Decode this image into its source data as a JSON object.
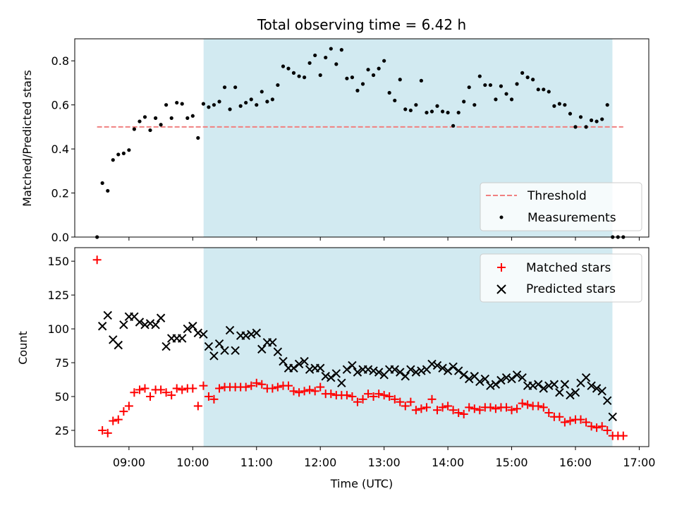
{
  "chart_data": [
    {
      "type": "scatter",
      "title": "Total observing time = 6.42 h",
      "ylabel": "Matched/Predicted stars",
      "xlabel": "",
      "xlim": [
        8.15,
        17.15
      ],
      "ylim": [
        0,
        0.9
      ],
      "yticks": [
        "0.0",
        "0.2",
        "0.4",
        "0.6",
        "0.8"
      ],
      "shaded_interval": {
        "x0": 10.17,
        "x1": 16.58,
        "color": "#add8e6"
      },
      "threshold": {
        "name": "Threshold",
        "y": 0.5,
        "x0": 8.5,
        "x1": 16.75,
        "color": "#f08080"
      },
      "series": [
        {
          "name": "Measurements",
          "color": "#000000",
          "x": [
            8.5,
            8.583,
            8.667,
            8.75,
            8.833,
            8.917,
            9.0,
            9.083,
            9.167,
            9.25,
            9.333,
            9.417,
            9.5,
            9.583,
            9.667,
            9.75,
            9.833,
            9.917,
            10.0,
            10.083,
            10.167,
            10.25,
            10.333,
            10.417,
            10.5,
            10.583,
            10.667,
            10.75,
            10.833,
            10.917,
            11.0,
            11.083,
            11.167,
            11.25,
            11.333,
            11.417,
            11.5,
            11.583,
            11.667,
            11.75,
            11.833,
            11.917,
            12.0,
            12.083,
            12.167,
            12.25,
            12.333,
            12.417,
            12.5,
            12.583,
            12.667,
            12.75,
            12.833,
            12.917,
            13.0,
            13.083,
            13.167,
            13.25,
            13.333,
            13.417,
            13.5,
            13.583,
            13.667,
            13.75,
            13.833,
            13.917,
            14.0,
            14.083,
            14.167,
            14.25,
            14.333,
            14.417,
            14.5,
            14.583,
            14.667,
            14.75,
            14.833,
            14.917,
            15.0,
            15.083,
            15.167,
            15.25,
            15.333,
            15.417,
            15.5,
            15.583,
            15.667,
            15.75,
            15.833,
            15.917,
            16.0,
            16.083,
            16.167,
            16.25,
            16.333,
            16.417,
            16.5,
            16.583,
            16.667,
            16.75
          ],
          "y": [
            0.0,
            0.245,
            0.21,
            0.35,
            0.375,
            0.38,
            0.395,
            0.49,
            0.525,
            0.545,
            0.485,
            0.54,
            0.51,
            0.6,
            0.54,
            0.61,
            0.605,
            0.54,
            0.55,
            0.45,
            0.605,
            0.59,
            0.6,
            0.615,
            0.68,
            0.58,
            0.68,
            0.595,
            0.61,
            0.625,
            0.6,
            0.66,
            0.615,
            0.625,
            0.69,
            0.775,
            0.765,
            0.745,
            0.73,
            0.725,
            0.79,
            0.825,
            0.735,
            0.815,
            0.855,
            0.785,
            0.85,
            0.72,
            0.725,
            0.665,
            0.695,
            0.76,
            0.735,
            0.765,
            0.8,
            0.655,
            0.62,
            0.715,
            0.58,
            0.575,
            0.6,
            0.71,
            0.565,
            0.57,
            0.595,
            0.57,
            0.565,
            0.505,
            0.565,
            0.615,
            0.68,
            0.6,
            0.73,
            0.69,
            0.69,
            0.625,
            0.685,
            0.65,
            0.625,
            0.695,
            0.745,
            0.725,
            0.715,
            0.67,
            0.67,
            0.66,
            0.595,
            0.605,
            0.6,
            0.56,
            0.5,
            0.545,
            0.5,
            0.53,
            0.525,
            0.535,
            0.6,
            0.0,
            0.0,
            0.0
          ]
        }
      ],
      "legend": {
        "position": "lower-right",
        "entries": [
          "Threshold",
          "Measurements"
        ]
      }
    },
    {
      "type": "scatter",
      "title": "",
      "ylabel": "Count",
      "xlabel": "Time (UTC)",
      "xlim": [
        8.15,
        17.15
      ],
      "ylim": [
        13,
        160
      ],
      "yticks": [
        "25",
        "50",
        "75",
        "100",
        "125",
        "150"
      ],
      "xticks": [
        "09:00",
        "10:00",
        "11:00",
        "12:00",
        "13:00",
        "14:00",
        "15:00",
        "16:00",
        "17:00"
      ],
      "shaded_interval": {
        "x0": 10.17,
        "x1": 16.58,
        "color": "#add8e6"
      },
      "series": [
        {
          "name": "Matched stars",
          "marker": "plus",
          "color": "#ff0000",
          "x": [
            8.5,
            8.583,
            8.667,
            8.75,
            8.833,
            8.917,
            9.0,
            9.083,
            9.167,
            9.25,
            9.333,
            9.417,
            9.5,
            9.583,
            9.667,
            9.75,
            9.833,
            9.917,
            10.0,
            10.083,
            10.167,
            10.25,
            10.333,
            10.417,
            10.5,
            10.583,
            10.667,
            10.75,
            10.833,
            10.917,
            11.0,
            11.083,
            11.167,
            11.25,
            11.333,
            11.417,
            11.5,
            11.583,
            11.667,
            11.75,
            11.833,
            11.917,
            12.0,
            12.083,
            12.167,
            12.25,
            12.333,
            12.417,
            12.5,
            12.583,
            12.667,
            12.75,
            12.833,
            12.917,
            13.0,
            13.083,
            13.167,
            13.25,
            13.333,
            13.417,
            13.5,
            13.583,
            13.667,
            13.75,
            13.833,
            13.917,
            14.0,
            14.083,
            14.167,
            14.25,
            14.333,
            14.417,
            14.5,
            14.583,
            14.667,
            14.75,
            14.833,
            14.917,
            15.0,
            15.083,
            15.167,
            15.25,
            15.333,
            15.417,
            15.5,
            15.583,
            15.667,
            15.75,
            15.833,
            15.917,
            16.0,
            16.083,
            16.167,
            16.25,
            16.333,
            16.417,
            16.5,
            16.583,
            16.667,
            16.75
          ],
          "y": [
            151,
            25,
            23,
            32,
            33,
            39,
            43,
            53,
            55,
            56,
            50,
            55,
            55,
            53,
            51,
            56,
            55,
            56,
            56,
            43,
            58,
            50,
            48,
            56,
            57,
            57,
            57,
            57,
            57,
            58,
            60,
            59,
            56,
            56,
            57,
            58,
            58,
            54,
            53,
            54,
            55,
            54,
            57,
            52,
            52,
            51,
            51,
            51,
            50,
            46,
            48,
            52,
            50,
            52,
            51,
            50,
            48,
            46,
            43,
            46,
            40,
            41,
            42,
            48,
            40,
            42,
            43,
            40,
            38,
            37,
            42,
            41,
            40,
            42,
            42,
            41,
            42,
            42,
            40,
            41,
            45,
            44,
            43,
            43,
            42,
            38,
            35,
            35,
            31,
            32,
            33,
            33,
            31,
            28,
            27,
            28,
            25,
            21,
            21,
            21
          ]
        },
        {
          "name": "Predicted stars",
          "marker": "x",
          "color": "#000000",
          "x": [
            8.583,
            8.667,
            8.75,
            8.833,
            8.917,
            9.0,
            9.083,
            9.167,
            9.25,
            9.333,
            9.417,
            9.5,
            9.583,
            9.667,
            9.75,
            9.833,
            9.917,
            10.0,
            10.083,
            10.167,
            10.25,
            10.333,
            10.417,
            10.5,
            10.583,
            10.667,
            10.75,
            10.833,
            10.917,
            11.0,
            11.083,
            11.167,
            11.25,
            11.333,
            11.417,
            11.5,
            11.583,
            11.667,
            11.75,
            11.833,
            11.917,
            12.0,
            12.083,
            12.167,
            12.25,
            12.333,
            12.417,
            12.5,
            12.583,
            12.667,
            12.75,
            12.833,
            12.917,
            13.0,
            13.083,
            13.167,
            13.25,
            13.333,
            13.417,
            13.5,
            13.583,
            13.667,
            13.75,
            13.833,
            13.917,
            14.0,
            14.083,
            14.167,
            14.25,
            14.333,
            14.417,
            14.5,
            14.583,
            14.667,
            14.75,
            14.833,
            14.917,
            15.0,
            15.083,
            15.167,
            15.25,
            15.333,
            15.417,
            15.5,
            15.583,
            15.667,
            15.75,
            15.833,
            15.917,
            16.0,
            16.083,
            16.167,
            16.25,
            16.333,
            16.417,
            16.5,
            16.583
          ],
          "y": [
            102,
            110,
            92,
            88,
            103,
            109,
            109,
            105,
            103,
            104,
            103,
            108,
            87,
            93,
            93,
            93,
            100,
            102,
            97,
            96,
            87,
            80,
            89,
            84,
            99,
            84,
            95,
            95,
            96,
            97,
            85,
            90,
            90,
            83,
            76,
            71,
            71,
            74,
            76,
            70,
            71,
            71,
            65,
            64,
            67,
            60,
            70,
            73,
            68,
            70,
            70,
            69,
            68,
            66,
            70,
            70,
            68,
            65,
            70,
            68,
            69,
            70,
            74,
            73,
            71,
            69,
            72,
            69,
            66,
            63,
            65,
            61,
            63,
            58,
            59,
            62,
            64,
            63,
            66,
            64,
            58,
            58,
            59,
            56,
            58,
            59,
            53,
            59,
            51,
            53,
            60,
            64,
            58,
            56,
            54,
            47,
            35
          ]
        }
      ],
      "legend": {
        "position": "upper-right",
        "entries": [
          "Matched stars",
          "Predicted stars"
        ]
      }
    }
  ]
}
